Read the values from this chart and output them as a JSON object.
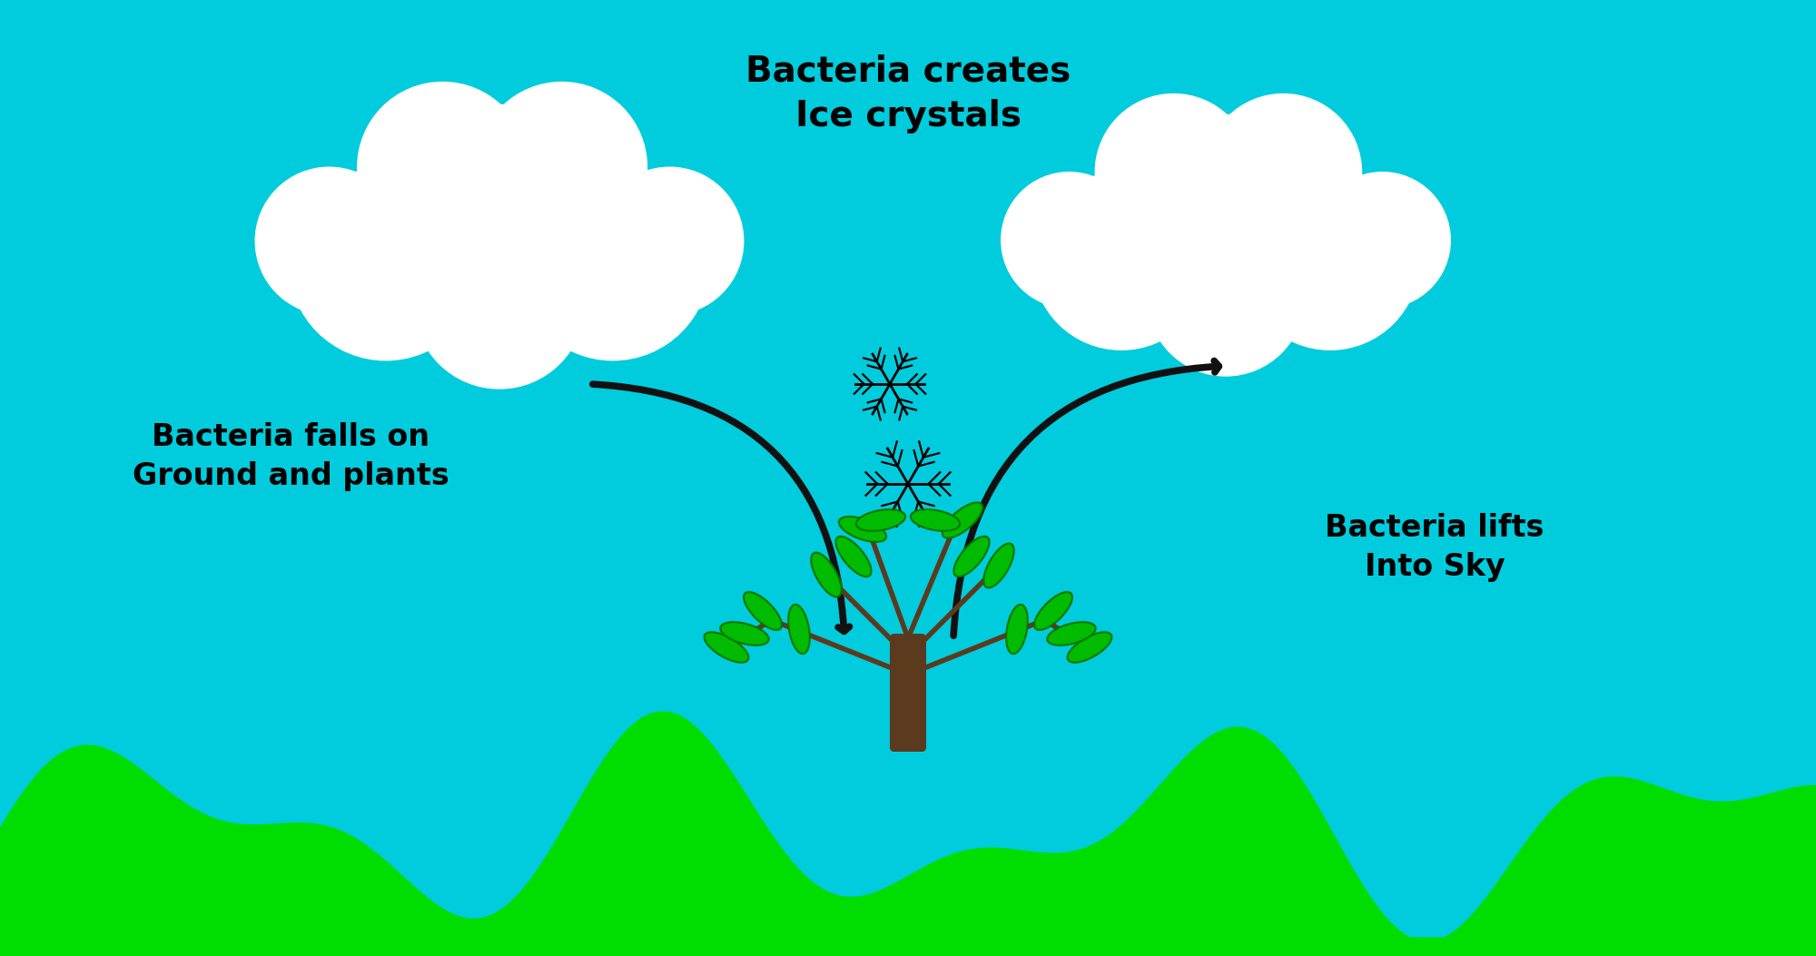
{
  "bg_color": "#00CCDD",
  "sky_color": "#00CCDD",
  "grass_color": "#00DD00",
  "cloud_color": "#FFFFFF",
  "arrow_color": "#111111",
  "text_color": "#000000",
  "title_text": "Bacteria creates\nIce crystals",
  "label_left": "Bacteria falls on\nGround and plants",
  "label_right": "Bacteria lifts\nInto Sky",
  "title_fontsize": 28,
  "label_fontsize": 24,
  "fig_width": 20.0,
  "fig_height": 10.53
}
